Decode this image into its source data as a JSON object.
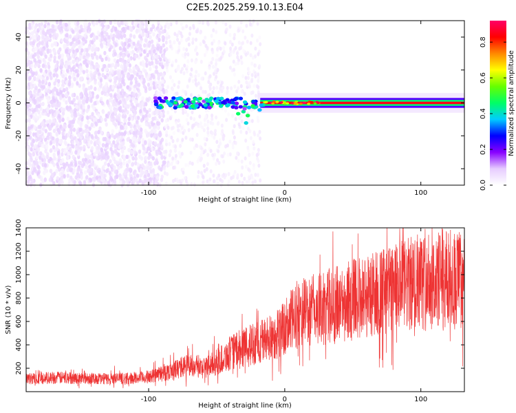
{
  "figure": {
    "title": "C2E5.2025.259.10.13.E04"
  },
  "chart_data": [
    {
      "type": "heatmap",
      "title": "C2E5.2025.259.10.13.E04",
      "xlabel": "Height of straight line (km)",
      "ylabel": "Frequency (Hz)",
      "xlim": [
        -190,
        132
      ],
      "ylim": [
        -50,
        50
      ],
      "xticks": [
        -100,
        0,
        100
      ],
      "xtick_labels": [
        "-100",
        "0",
        "100"
      ],
      "yticks": [
        -40,
        -20,
        0,
        20,
        40
      ],
      "ytick_labels": [
        "-40",
        "-20",
        "0",
        "20",
        "40"
      ],
      "colorbar": {
        "label": "Normalized spectral amplitude",
        "range": [
          0,
          0.92
        ],
        "ticks": [
          0.0,
          0.2,
          0.4,
          0.6,
          0.8
        ],
        "tick_labels": [
          "0.0",
          "0.2",
          "0.4",
          "0.6",
          "0.8"
        ],
        "colors": [
          "#ffffff",
          "#e6ccff",
          "#8800ff",
          "#0000ff",
          "#00ccff",
          "#00ff66",
          "#66ff00",
          "#ffff00",
          "#ff8800",
          "#ff0000",
          "#ff0066"
        ]
      },
      "regions": [
        {
          "name": "noise",
          "x_range": [
            -190,
            -88
          ],
          "freq_range": [
            -50,
            50
          ],
          "amplitude": 0.06
        },
        {
          "name": "faint noise",
          "x_range": [
            -88,
            -18
          ],
          "freq_range": [
            -50,
            50
          ],
          "amplitude": 0.02
        },
        {
          "name": "carrier",
          "x_range": [
            -95,
            132
          ],
          "freq_center": 0,
          "freq_halfwidth": 3,
          "amplitude": 0.85
        }
      ]
    },
    {
      "type": "line",
      "xlabel": "Height of straight line (km)",
      "ylabel": "SNR (10 * v/v)",
      "xlim": [
        -190,
        132
      ],
      "ylim": [
        0,
        1400
      ],
      "xticks": [
        -100,
        0,
        100
      ],
      "xtick_labels": [
        "-100",
        "0",
        "100"
      ],
      "yticks": [
        200,
        400,
        600,
        800,
        1000,
        1200,
        1400
      ],
      "ytick_labels": [
        "200",
        "400",
        "600",
        "800",
        "1000",
        "1200",
        "1400"
      ],
      "line_color": "#ee3333",
      "series": [
        {
          "name": "SNR",
          "x": [
            -190,
            -170,
            -150,
            -130,
            -110,
            -100,
            -90,
            -80,
            -70,
            -60,
            -50,
            -40,
            -30,
            -20,
            -10,
            0,
            10,
            20,
            30,
            40,
            50,
            60,
            70,
            80,
            90,
            100,
            110,
            120,
            132
          ],
          "values": [
            110,
            120,
            115,
            110,
            115,
            125,
            155,
            190,
            230,
            200,
            250,
            330,
            380,
            420,
            460,
            540,
            670,
            690,
            720,
            750,
            790,
            820,
            850,
            870,
            910,
            940,
            940,
            960,
            960
          ]
        }
      ]
    }
  ]
}
